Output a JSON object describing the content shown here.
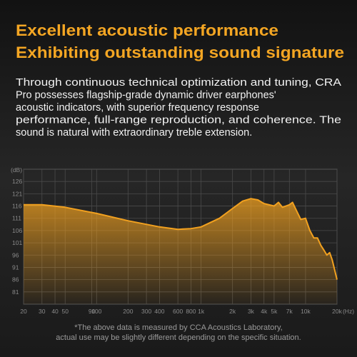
{
  "header": {
    "title_lines": [
      "Excellent acoustic performance",
      "Exhibiting outstanding sound signature"
    ],
    "body_lines": [
      "Through continuous technical optimization and tuning, CRA",
      "Pro possesses flagship-grade dynamic driver earphones'",
      "acoustic indicators, with superior frequency response",
      "performance, full-range reproduction, and coherence. The",
      "sound is natural with extraordinary treble extension."
    ]
  },
  "chart_data": {
    "type": "area",
    "x_label": "(Hz)",
    "y_label": "(dB)",
    "log_x": true,
    "grid": true,
    "color": "#f2a11f",
    "x": [
      20,
      30,
      50,
      100,
      200,
      400,
      600,
      800,
      1000,
      1500,
      2000,
      2500,
      3000,
      3500,
      4000,
      5000,
      5500,
      6000,
      7000,
      7500,
      8000,
      9000,
      10000,
      11000,
      12000,
      13000,
      14000,
      15000,
      16000,
      17000,
      18000,
      20000
    ],
    "values": [
      116.5,
      116.5,
      115.5,
      113,
      110,
      107.5,
      106.5,
      106.8,
      107.5,
      111,
      115,
      118,
      119,
      118.5,
      117,
      116,
      117.5,
      115.5,
      116.5,
      117.5,
      115,
      110.5,
      111,
      106,
      103,
      103,
      100,
      98,
      96,
      97,
      94,
      86
    ],
    "xlim": [
      20,
      20000
    ],
    "ylim": [
      76,
      131
    ],
    "xticks": [
      20,
      30,
      40,
      50,
      90,
      100,
      200,
      300,
      400,
      600,
      800,
      {
        "value": 1000,
        "label": "1k"
      },
      {
        "value": 2000,
        "label": "2k"
      },
      {
        "value": 3000,
        "label": "3k"
      },
      {
        "value": 4000,
        "label": "4k"
      },
      {
        "value": 5000,
        "label": "5k"
      },
      {
        "value": 7000,
        "label": "7k"
      },
      {
        "value": 10000,
        "label": "10k"
      },
      {
        "value": 20000,
        "label": "20k"
      }
    ],
    "yticks": [
      81,
      86,
      91,
      96,
      101,
      106,
      111,
      116,
      121,
      126
    ],
    "footnote_lines": [
      "*The above data is measured by CCA Acoustics Laboratory,",
      "actual use may be slightly different depending on the specific situation."
    ]
  }
}
